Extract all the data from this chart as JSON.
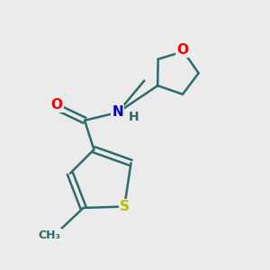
{
  "background_color": "#ebebeb",
  "bond_color": "#2d6b6b",
  "bond_width": 1.8,
  "atom_colors": {
    "O": "#ee0000",
    "N": "#0000cc",
    "S": "#bbbb00",
    "C": "#2d6b6b",
    "H": "#2d6b6b"
  },
  "font_size": 11,
  "font_size_H": 10
}
